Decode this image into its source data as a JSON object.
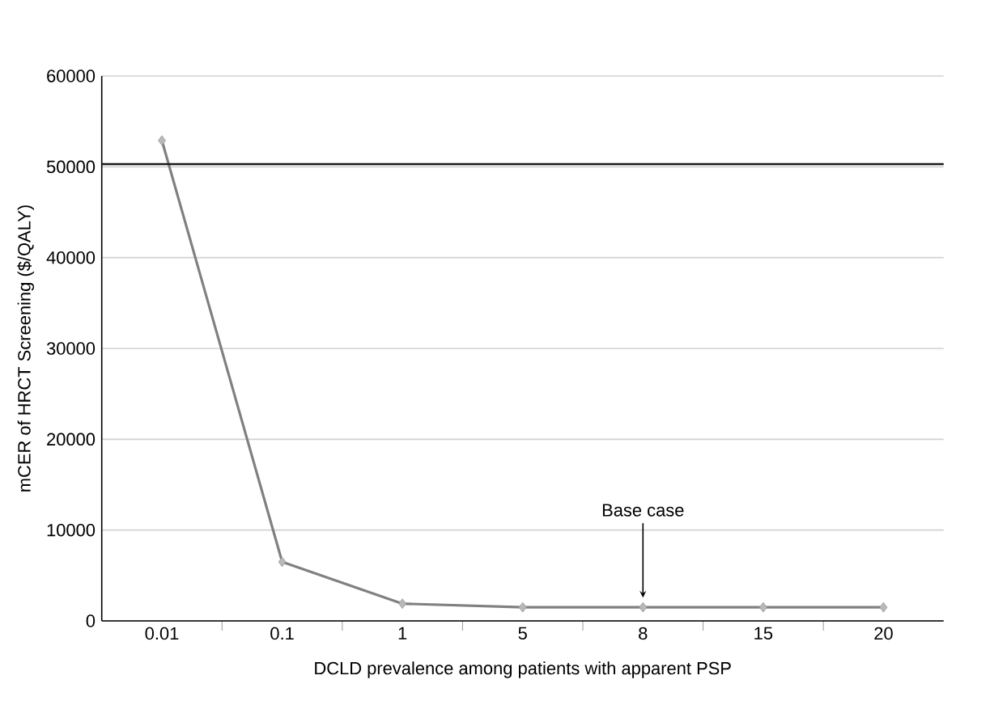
{
  "chart_data": {
    "type": "line",
    "xlabel": "DCLD prevalence among patients with apparent PSP",
    "ylabel": "mCER of HRCT Screening ($/QALY)",
    "categories": [
      "0.01",
      "0.1",
      "1",
      "5",
      "8",
      "15",
      "20"
    ],
    "series": [
      {
        "color": "#808080",
        "values": [
          52900,
          6500,
          1900,
          1500,
          1500,
          1500,
          1500
        ]
      }
    ],
    "ylim": [
      0,
      60000
    ],
    "yticks": [
      0,
      10000,
      20000,
      30000,
      40000,
      50000,
      60000
    ],
    "grid": "y",
    "marker": "diamond",
    "line_style": "solid",
    "ref_lines": [
      {
        "axis": "y",
        "value": 50300,
        "color": "#1a1a1a"
      }
    ],
    "annotations": [
      {
        "text": "Base case",
        "x": "8",
        "y": 1500
      }
    ]
  }
}
